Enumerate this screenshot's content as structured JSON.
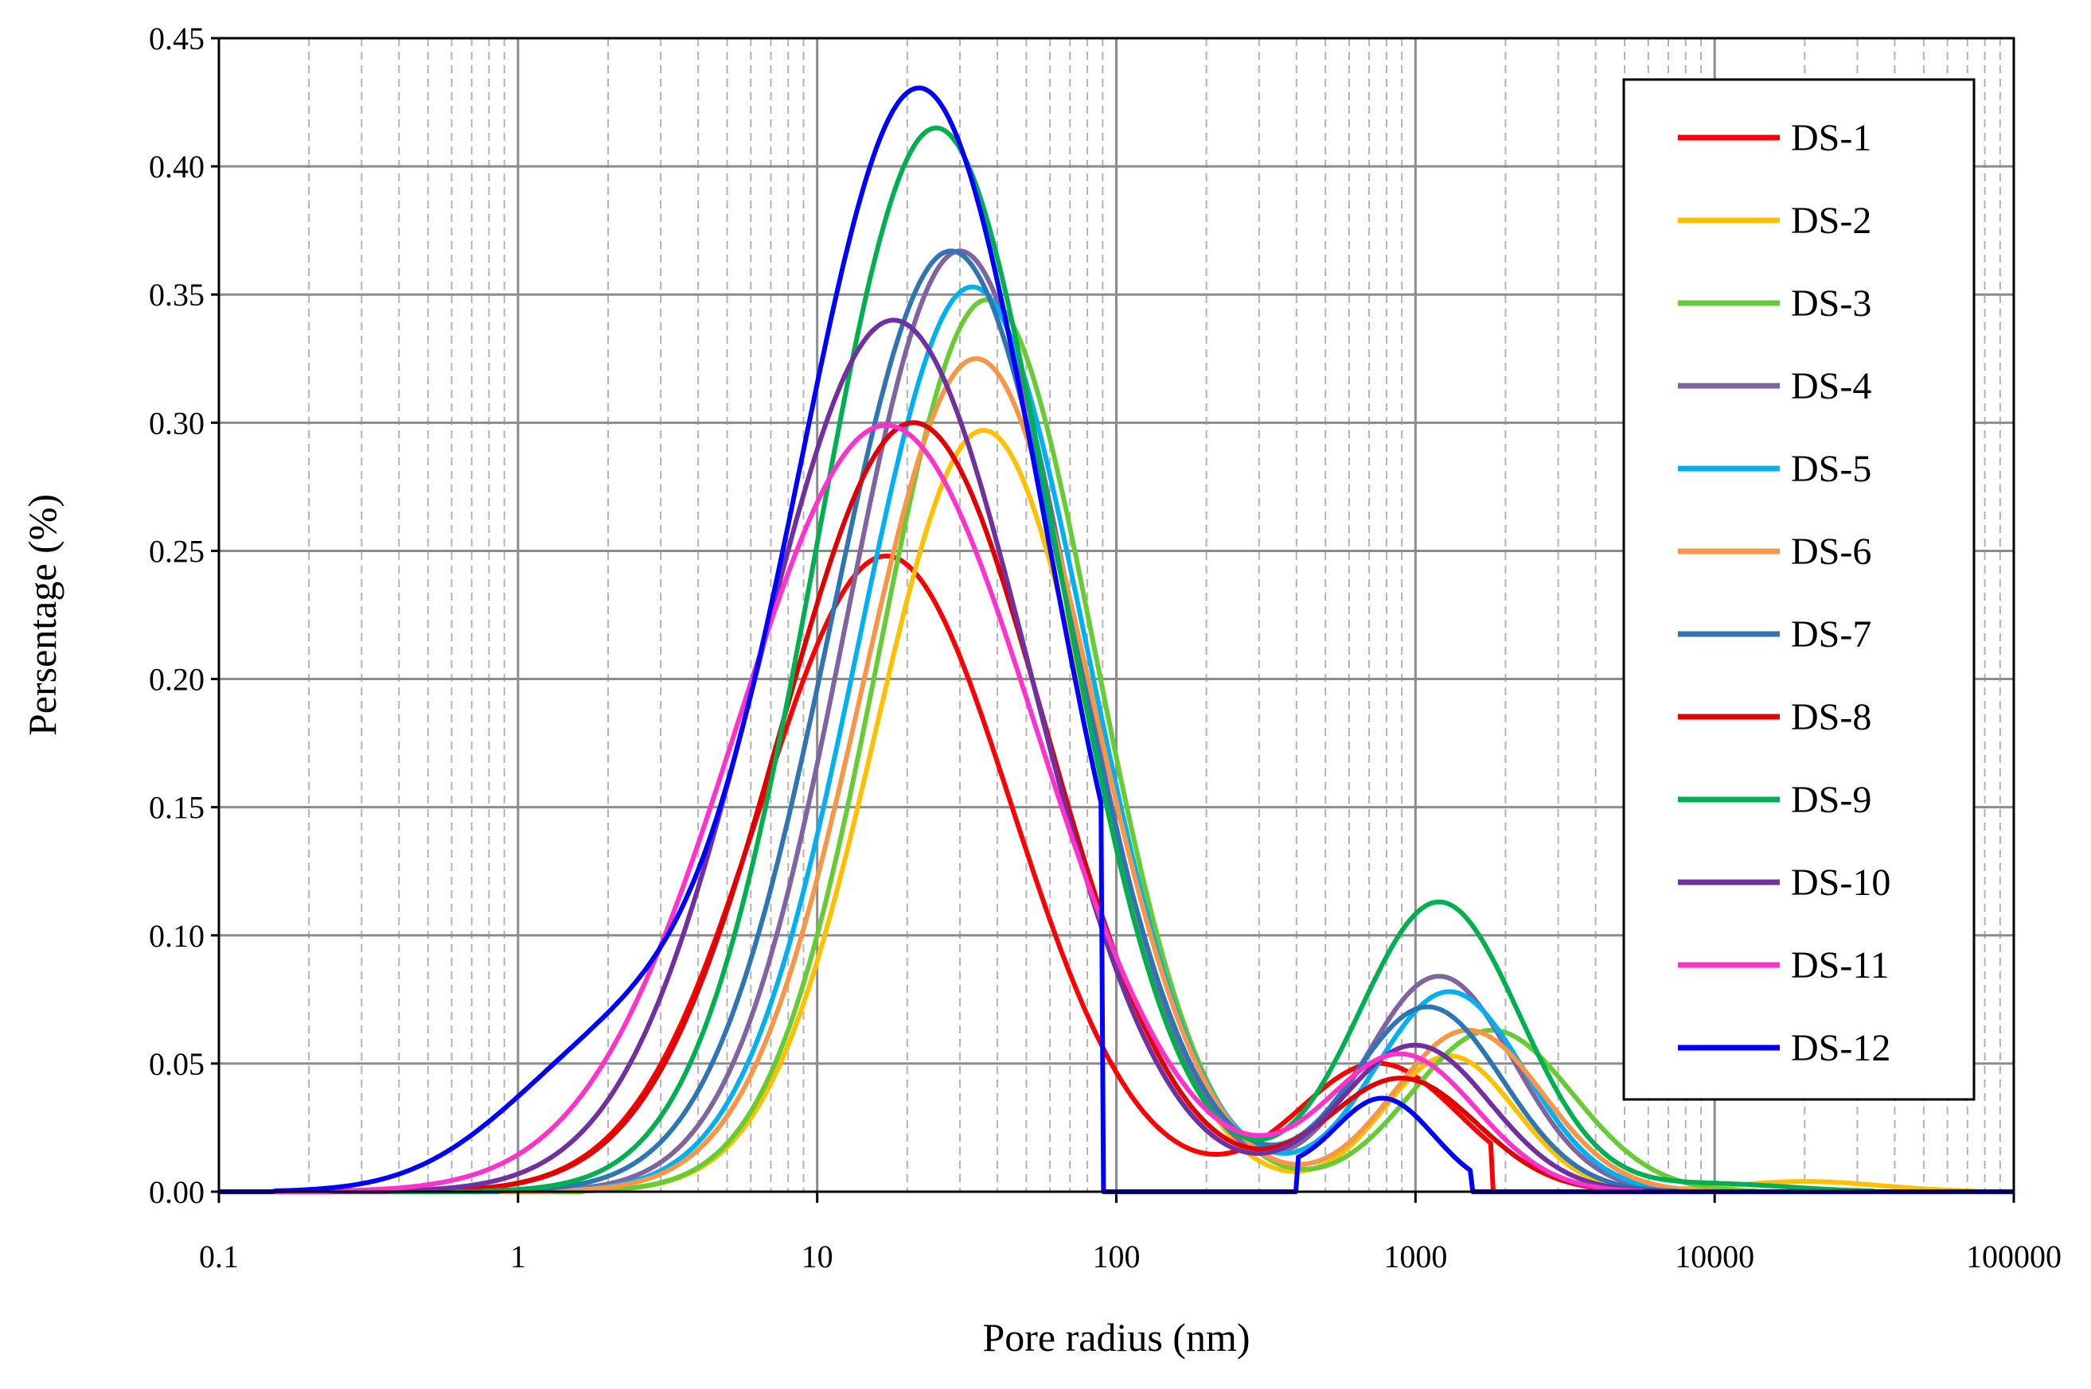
{
  "chart_data": {
    "type": "line",
    "xscale": "log",
    "xlabel": "Pore radius (nm)",
    "ylabel": "Persentage (%)",
    "xlim": [
      0.1,
      100000
    ],
    "ylim": [
      0,
      0.45
    ],
    "xticks": [
      "0.1",
      "1",
      "10",
      "100",
      "1000",
      "10000",
      "100000"
    ],
    "yticks": [
      "0.00",
      "0.05",
      "0.10",
      "0.15",
      "0.20",
      "0.25",
      "0.30",
      "0.35",
      "0.40",
      "0.45"
    ],
    "grid": true,
    "legend_position": "top-right",
    "series": [
      {
        "name": "DS-1",
        "color": "#ff0000",
        "peaks": [
          {
            "center": 17,
            "height": 0.248,
            "width": 0.42
          },
          {
            "center": 750,
            "height": 0.05,
            "width": 0.27
          }
        ],
        "floor_to": 1800
      },
      {
        "name": "DS-2",
        "color": "#ffc000",
        "peaks": [
          {
            "center": 36,
            "height": 0.297,
            "width": 0.36
          },
          {
            "center": 1300,
            "height": 0.053,
            "width": 0.22
          },
          {
            "center": 20000,
            "height": 0.004,
            "width": 0.25
          }
        ]
      },
      {
        "name": "DS-3",
        "color": "#66cc33",
        "peaks": [
          {
            "center": 37,
            "height": 0.348,
            "width": 0.36
          },
          {
            "center": 1800,
            "height": 0.063,
            "width": 0.27
          }
        ]
      },
      {
        "name": "DS-4",
        "color": "#8064a2",
        "peaks": [
          {
            "center": 30,
            "height": 0.367,
            "width": 0.38
          },
          {
            "center": 1200,
            "height": 0.084,
            "width": 0.25
          }
        ]
      },
      {
        "name": "DS-5",
        "color": "#00b0f0",
        "peaks": [
          {
            "center": 33,
            "height": 0.353,
            "width": 0.38
          },
          {
            "center": 1300,
            "height": 0.078,
            "width": 0.25
          }
        ]
      },
      {
        "name": "DS-6",
        "color": "#f79646",
        "peaks": [
          {
            "center": 34,
            "height": 0.325,
            "width": 0.38
          },
          {
            "center": 1500,
            "height": 0.063,
            "width": 0.25
          }
        ]
      },
      {
        "name": "DS-7",
        "color": "#2e75b6",
        "peaks": [
          {
            "center": 28,
            "height": 0.367,
            "width": 0.4
          },
          {
            "center": 1100,
            "height": 0.072,
            "width": 0.25
          }
        ]
      },
      {
        "name": "DS-8",
        "color": "#e00000",
        "peaks": [
          {
            "center": 21,
            "height": 0.3,
            "width": 0.44
          },
          {
            "center": 900,
            "height": 0.044,
            "width": 0.25
          }
        ]
      },
      {
        "name": "DS-9",
        "color": "#00b050",
        "peaks": [
          {
            "center": 25,
            "height": 0.415,
            "width": 0.4
          },
          {
            "center": 1200,
            "height": 0.113,
            "width": 0.27
          },
          {
            "center": 10000,
            "height": 0.003,
            "width": 0.25
          }
        ]
      },
      {
        "name": "DS-10",
        "color": "#7030a0",
        "peaks": [
          {
            "center": 18,
            "height": 0.34,
            "width": 0.45
          },
          {
            "center": 1000,
            "height": 0.057,
            "width": 0.25
          }
        ]
      },
      {
        "name": "DS-11",
        "color": "#ff33cc",
        "peaks": [
          {
            "center": 17,
            "height": 0.299,
            "width": 0.5
          },
          {
            "center": 900,
            "height": 0.053,
            "width": 0.25
          }
        ]
      },
      {
        "name": "DS-12",
        "color": "#0000ff",
        "peaks": [
          {
            "center": 22,
            "height": 0.43,
            "width": 0.42
          },
          {
            "center": 780,
            "height": 0.036,
            "width": 0.17
          }
        ],
        "shoulder": {
          "center": 2,
          "height": 0.05,
          "width": 0.35
        },
        "cutoffs": [
          [
            90,
            400
          ],
          [
            1550,
            100000
          ]
        ]
      }
    ]
  }
}
